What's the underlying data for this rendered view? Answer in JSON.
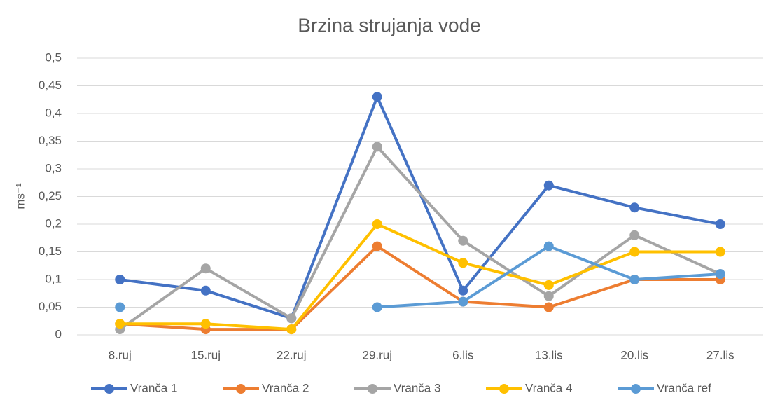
{
  "chart_data": {
    "type": "line",
    "title": "Brzina strujanja vode",
    "y_label": "ms⁻¹",
    "categories": [
      "8.ruj",
      "15.ruj",
      "22.ruj",
      "29.ruj",
      "6.lis",
      "13.lis",
      "20.lis",
      "27.lis"
    ],
    "series": [
      {
        "name": "Vranča 1",
        "color": "#4472c4",
        "values": [
          0.1,
          0.08,
          0.03,
          0.43,
          0.08,
          0.27,
          0.23,
          0.2
        ]
      },
      {
        "name": "Vranča 2",
        "color": "#ed7d31",
        "values": [
          0.02,
          0.01,
          0.01,
          0.16,
          0.06,
          0.05,
          0.1,
          0.1
        ]
      },
      {
        "name": "Vranča 3",
        "color": "#a5a5a5",
        "values": [
          0.01,
          0.12,
          0.03,
          0.34,
          0.17,
          0.07,
          0.18,
          0.11
        ]
      },
      {
        "name": "Vranča 4",
        "color": "#ffc000",
        "values": [
          0.02,
          0.02,
          0.01,
          0.2,
          0.13,
          0.09,
          0.15,
          0.15
        ]
      },
      {
        "name": "Vranča ref",
        "color": "#5b9bd5",
        "values": [
          0.05,
          null,
          null,
          0.05,
          0.06,
          0.16,
          0.1,
          0.11
        ]
      }
    ],
    "ylim": [
      0,
      0.5
    ],
    "yticks": [
      0,
      {
        "value": 0.05,
        "label": "0,05"
      },
      {
        "value": 0.1,
        "label": "0,1"
      },
      {
        "value": 0.15,
        "label": "0,15"
      },
      {
        "value": 0.2,
        "label": "0,2"
      },
      {
        "value": 0.25,
        "label": "0,25"
      },
      {
        "value": 0.3,
        "label": "0,3"
      },
      {
        "value": 0.35,
        "label": "0,35"
      },
      {
        "value": 0.4,
        "label": "0,4"
      },
      {
        "value": 0.45,
        "label": "0,45"
      },
      {
        "value": 0.5,
        "label": "0,5"
      }
    ],
    "grid": true,
    "legend": "bottom"
  }
}
